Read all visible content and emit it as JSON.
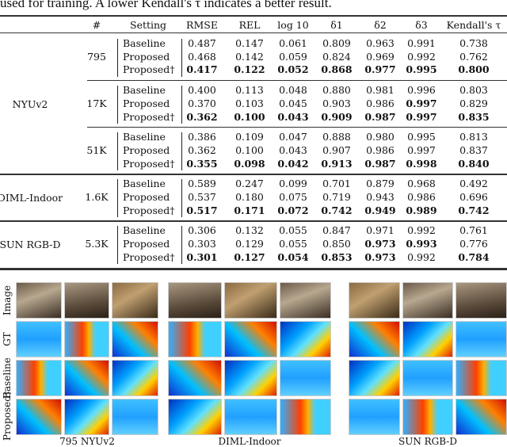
{
  "caption_fragment": "used for training. A lower Kendall's τ indicates a better result.",
  "table": {
    "headers": [
      "#",
      "Setting",
      "RMSE",
      "REL",
      "log 10",
      "δ1",
      "δ2",
      "δ3",
      "Kendall's τ"
    ],
    "groups": [
      {
        "dataset": "NYUv2",
        "sub": [
          {
            "n": "795",
            "rows": [
              {
                "setting": "Baseline",
                "values": [
                  "0.487",
                  "0.147",
                  "0.061",
                  "0.809",
                  "0.963",
                  "0.991",
                  "0.738"
                ],
                "bold": []
              },
              {
                "setting": "Proposed",
                "values": [
                  "0.468",
                  "0.142",
                  "0.059",
                  "0.824",
                  "0.969",
                  "0.992",
                  "0.762"
                ],
                "bold": []
              },
              {
                "setting": "Proposed†",
                "values": [
                  "0.417",
                  "0.122",
                  "0.052",
                  "0.868",
                  "0.977",
                  "0.995",
                  "0.800"
                ],
                "bold": [
                  0,
                  1,
                  2,
                  3,
                  4,
                  5,
                  6
                ]
              }
            ]
          },
          {
            "n": "17K",
            "rows": [
              {
                "setting": "Baseline",
                "values": [
                  "0.400",
                  "0.113",
                  "0.048",
                  "0.880",
                  "0.981",
                  "0.996",
                  "0.803"
                ],
                "bold": []
              },
              {
                "setting": "Proposed",
                "values": [
                  "0.370",
                  "0.103",
                  "0.045",
                  "0.903",
                  "0.986",
                  "0.997",
                  "0.829"
                ],
                "bold": [
                  5
                ]
              },
              {
                "setting": "Proposed†",
                "values": [
                  "0.362",
                  "0.100",
                  "0.043",
                  "0.909",
                  "0.987",
                  "0.997",
                  "0.835"
                ],
                "bold": [
                  0,
                  1,
                  2,
                  3,
                  4,
                  5,
                  6
                ]
              }
            ]
          },
          {
            "n": "51K",
            "rows": [
              {
                "setting": "Baseline",
                "values": [
                  "0.386",
                  "0.109",
                  "0.047",
                  "0.888",
                  "0.980",
                  "0.995",
                  "0.813"
                ],
                "bold": []
              },
              {
                "setting": "Proposed",
                "values": [
                  "0.362",
                  "0.100",
                  "0.043",
                  "0.907",
                  "0.986",
                  "0.997",
                  "0.837"
                ],
                "bold": []
              },
              {
                "setting": "Proposed†",
                "values": [
                  "0.355",
                  "0.098",
                  "0.042",
                  "0.913",
                  "0.987",
                  "0.998",
                  "0.840"
                ],
                "bold": [
                  0,
                  1,
                  2,
                  3,
                  4,
                  5,
                  6
                ]
              }
            ]
          }
        ]
      },
      {
        "dataset": "DIML-Indoor",
        "sub": [
          {
            "n": "1.6K",
            "rows": [
              {
                "setting": "Baseline",
                "values": [
                  "0.589",
                  "0.247",
                  "0.099",
                  "0.701",
                  "0.879",
                  "0.968",
                  "0.492"
                ],
                "bold": []
              },
              {
                "setting": "Proposed",
                "values": [
                  "0.537",
                  "0.180",
                  "0.075",
                  "0.719",
                  "0.943",
                  "0.986",
                  "0.696"
                ],
                "bold": []
              },
              {
                "setting": "Proposed†",
                "values": [
                  "0.517",
                  "0.171",
                  "0.072",
                  "0.742",
                  "0.949",
                  "0.989",
                  "0.742"
                ],
                "bold": [
                  0,
                  1,
                  2,
                  3,
                  4,
                  5,
                  6
                ]
              }
            ]
          }
        ]
      },
      {
        "dataset": "SUN RGB-D",
        "sub": [
          {
            "n": "5.3K",
            "rows": [
              {
                "setting": "Baseline",
                "values": [
                  "0.306",
                  "0.132",
                  "0.055",
                  "0.847",
                  "0.971",
                  "0.992",
                  "0.761"
                ],
                "bold": []
              },
              {
                "setting": "Proposed",
                "values": [
                  "0.303",
                  "0.129",
                  "0.055",
                  "0.850",
                  "0.973",
                  "0.993",
                  "0.776"
                ],
                "bold": [
                  4,
                  5
                ]
              },
              {
                "setting": "Proposed†",
                "values": [
                  "0.301",
                  "0.127",
                  "0.054",
                  "0.853",
                  "0.973",
                  "0.992",
                  "0.784"
                ],
                "bold": [
                  0,
                  1,
                  2,
                  3,
                  4,
                  6
                ]
              }
            ]
          }
        ]
      }
    ]
  },
  "figure": {
    "row_labels": [
      "Image",
      "GT",
      "Baseline",
      "Proposed†"
    ],
    "group_captions": [
      "795 NYUv2",
      "DIML-Indoor",
      "SUN RGB-D"
    ]
  }
}
